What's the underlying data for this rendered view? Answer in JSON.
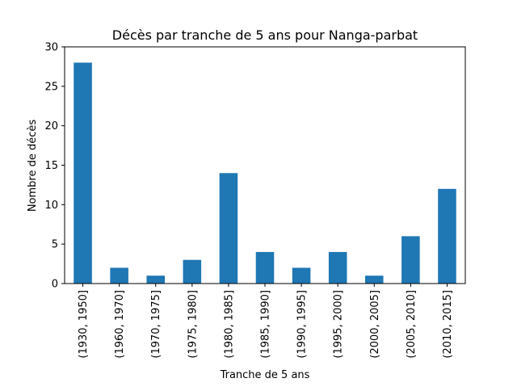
{
  "chart_data": {
    "type": "bar",
    "title": "Décès par tranche de 5 ans pour Nanga-parbat",
    "xlabel": "Tranche de 5 ans",
    "ylabel": "Nombre de décès",
    "categories": [
      "(1930, 1950]",
      "(1960, 1970]",
      "(1970, 1975]",
      "(1975, 1980]",
      "(1980, 1985]",
      "(1985, 1990]",
      "(1990, 1995]",
      "(1995, 2000]",
      "(2000, 2005]",
      "(2005, 2010]",
      "(2010, 2015]"
    ],
    "values": [
      28,
      2,
      1,
      3,
      14,
      4,
      2,
      4,
      1,
      6,
      12
    ],
    "ylim": [
      0,
      30
    ],
    "yticks": [
      0,
      5,
      10,
      15,
      20,
      25,
      30
    ],
    "grid": false,
    "legend": "none",
    "bar_color": "#1f77b4"
  }
}
